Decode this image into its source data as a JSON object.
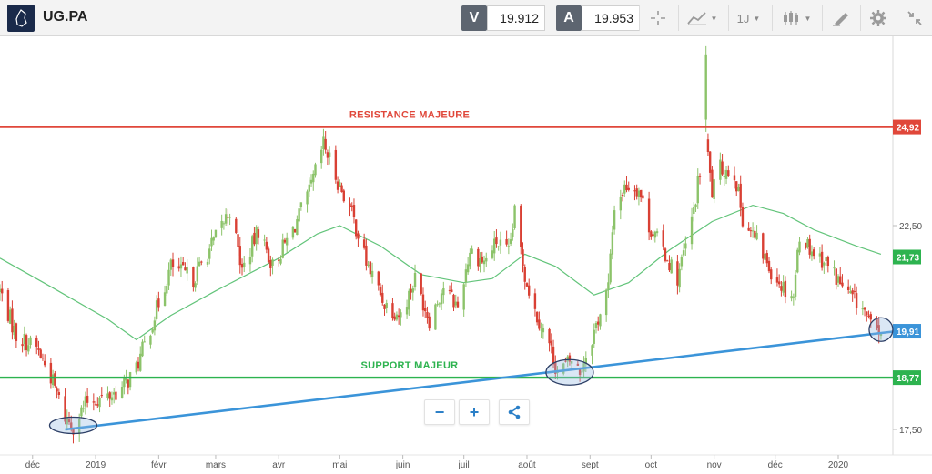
{
  "toolbar": {
    "symbol": "UG.PA",
    "sell": {
      "label": "V",
      "value": "19.912"
    },
    "buy": {
      "label": "A",
      "value": "19.953"
    },
    "timeframe": "1J"
  },
  "colors": {
    "bull": "#8cc36a",
    "bear": "#d94034",
    "resistance": "#e0473a",
    "support": "#2db34f",
    "trendline": "#3b94d9",
    "ma": "#62c47a",
    "current": "#3b94d9"
  },
  "chart_data": {
    "type": "candlestick",
    "title": "",
    "xlabel": "",
    "ylabel": "",
    "ylim": [
      17.0,
      27.0
    ],
    "y_ticks": [
      17.5,
      22.5
    ],
    "x_tick_labels": [
      {
        "date": "2018-12-01",
        "label": "déc"
      },
      {
        "date": "2019-01-01",
        "label": "2019"
      },
      {
        "date": "2019-02-01",
        "label": "févr"
      },
      {
        "date": "2019-03-01",
        "label": "mars"
      },
      {
        "date": "2019-04-01",
        "label": "avr"
      },
      {
        "date": "2019-05-01",
        "label": "mai"
      },
      {
        "date": "2019-06-01",
        "label": "juin"
      },
      {
        "date": "2019-07-01",
        "label": "juil"
      },
      {
        "date": "2019-08-01",
        "label": "août"
      },
      {
        "date": "2019-09-01",
        "label": "sept"
      },
      {
        "date": "2019-10-01",
        "label": "oct"
      },
      {
        "date": "2019-11-01",
        "label": "nov"
      },
      {
        "date": "2019-12-01",
        "label": "déc"
      },
      {
        "date": "2020-01-01",
        "label": "2020"
      }
    ],
    "date_range": [
      "2018-11-15",
      "2020-01-22"
    ],
    "close_keypoints": [
      [
        "2018-11-15",
        20.9
      ],
      [
        "2018-11-23",
        19.8
      ],
      [
        "2018-12-03",
        19.5
      ],
      [
        "2018-12-10",
        18.8
      ],
      [
        "2018-12-17",
        17.8
      ],
      [
        "2018-12-21",
        17.6
      ],
      [
        "2018-12-28",
        18.2
      ],
      [
        "2019-01-07",
        18.3
      ],
      [
        "2019-01-14",
        18.5
      ],
      [
        "2019-01-21",
        19.0
      ],
      [
        "2019-01-28",
        20.0
      ],
      [
        "2019-02-07",
        21.5
      ],
      [
        "2019-02-18",
        21.2
      ],
      [
        "2019-02-28",
        22.1
      ],
      [
        "2019-03-08",
        22.9
      ],
      [
        "2019-03-14",
        21.4
      ],
      [
        "2019-03-22",
        22.4
      ],
      [
        "2019-03-29",
        21.5
      ],
      [
        "2019-04-08",
        22.4
      ],
      [
        "2019-04-16",
        23.3
      ],
      [
        "2019-04-23",
        24.5
      ],
      [
        "2019-04-30",
        23.6
      ],
      [
        "2019-05-07",
        22.8
      ],
      [
        "2019-05-14",
        21.6
      ],
      [
        "2019-05-23",
        20.6
      ],
      [
        "2019-05-31",
        20.3
      ],
      [
        "2019-06-07",
        21.2
      ],
      [
        "2019-06-14",
        20.2
      ],
      [
        "2019-06-21",
        21.0
      ],
      [
        "2019-06-28",
        20.5
      ],
      [
        "2019-07-04",
        21.9
      ],
      [
        "2019-07-11",
        21.6
      ],
      [
        "2019-07-17",
        22.1
      ],
      [
        "2019-07-23",
        21.8
      ],
      [
        "2019-07-26",
        22.8
      ],
      [
        "2019-07-31",
        21.3
      ],
      [
        "2019-08-05",
        20.4
      ],
      [
        "2019-08-12",
        19.6
      ],
      [
        "2019-08-16",
        18.9
      ],
      [
        "2019-08-23",
        19.2
      ],
      [
        "2019-08-27",
        18.9
      ],
      [
        "2019-09-03",
        19.9
      ],
      [
        "2019-09-10",
        21.0
      ],
      [
        "2019-09-13",
        23.0
      ],
      [
        "2019-09-19",
        23.5
      ],
      [
        "2019-09-25",
        23.4
      ],
      [
        "2019-09-30",
        22.5
      ],
      [
        "2019-10-07",
        21.9
      ],
      [
        "2019-10-14",
        21.2
      ],
      [
        "2019-10-21",
        22.6
      ],
      [
        "2019-10-24",
        23.5
      ],
      [
        "2019-10-28",
        24.6
      ],
      [
        "2019-10-31",
        23.3
      ],
      [
        "2019-11-04",
        23.9
      ],
      [
        "2019-11-11",
        23.8
      ],
      [
        "2019-11-15",
        22.7
      ],
      [
        "2019-11-22",
        22.1
      ],
      [
        "2019-11-29",
        21.4
      ],
      [
        "2019-12-05",
        21.0
      ],
      [
        "2019-12-10",
        20.8
      ],
      [
        "2019-12-13",
        22.3
      ],
      [
        "2019-12-19",
        21.9
      ],
      [
        "2019-12-26",
        21.6
      ],
      [
        "2020-01-06",
        20.8
      ],
      [
        "2020-01-13",
        20.5
      ],
      [
        "2020-01-17",
        20.0
      ],
      [
        "2020-01-22",
        19.9
      ]
    ],
    "spikes": [
      {
        "date": "2019-10-28",
        "open": 25.1,
        "high": 26.9,
        "low": 24.8,
        "close": 26.7
      }
    ],
    "moving_average": [
      [
        "2018-11-15",
        21.7
      ],
      [
        "2018-12-10",
        21.0
      ],
      [
        "2019-01-07",
        20.2
      ],
      [
        "2019-01-21",
        19.7
      ],
      [
        "2019-02-07",
        20.3
      ],
      [
        "2019-03-01",
        20.9
      ],
      [
        "2019-04-01",
        21.7
      ],
      [
        "2019-04-20",
        22.3
      ],
      [
        "2019-05-01",
        22.5
      ],
      [
        "2019-05-21",
        22.0
      ],
      [
        "2019-06-10",
        21.3
      ],
      [
        "2019-07-01",
        21.1
      ],
      [
        "2019-07-15",
        21.2
      ],
      [
        "2019-07-31",
        21.8
      ],
      [
        "2019-08-15",
        21.5
      ],
      [
        "2019-09-03",
        20.8
      ],
      [
        "2019-09-20",
        21.1
      ],
      [
        "2019-10-10",
        21.9
      ],
      [
        "2019-10-31",
        22.6
      ],
      [
        "2019-11-20",
        23.0
      ],
      [
        "2019-12-05",
        22.8
      ],
      [
        "2019-12-20",
        22.4
      ],
      [
        "2020-01-10",
        22.0
      ],
      [
        "2020-01-22",
        21.8
      ]
    ],
    "levels": [
      {
        "name": "resistance",
        "label": "RESISTANCE MAJEURE",
        "value": 24.92,
        "value_label": "24,92"
      },
      {
        "name": "support",
        "label": "SUPPORT MAJEUR",
        "value": 18.77,
        "value_label": "18,77"
      }
    ],
    "ma_value_label": "21,73",
    "ma_value": 21.73,
    "current_value": 19.91,
    "current_value_label": "19,91",
    "trendline": [
      [
        "2018-12-17",
        17.5
      ],
      [
        "2020-01-25",
        19.9
      ]
    ],
    "highlight_ellipses": [
      {
        "date": "2018-12-21",
        "value": 17.6
      },
      {
        "date": "2019-08-22",
        "value": 18.9
      },
      {
        "date": "2020-01-22",
        "value": 19.95
      }
    ]
  }
}
